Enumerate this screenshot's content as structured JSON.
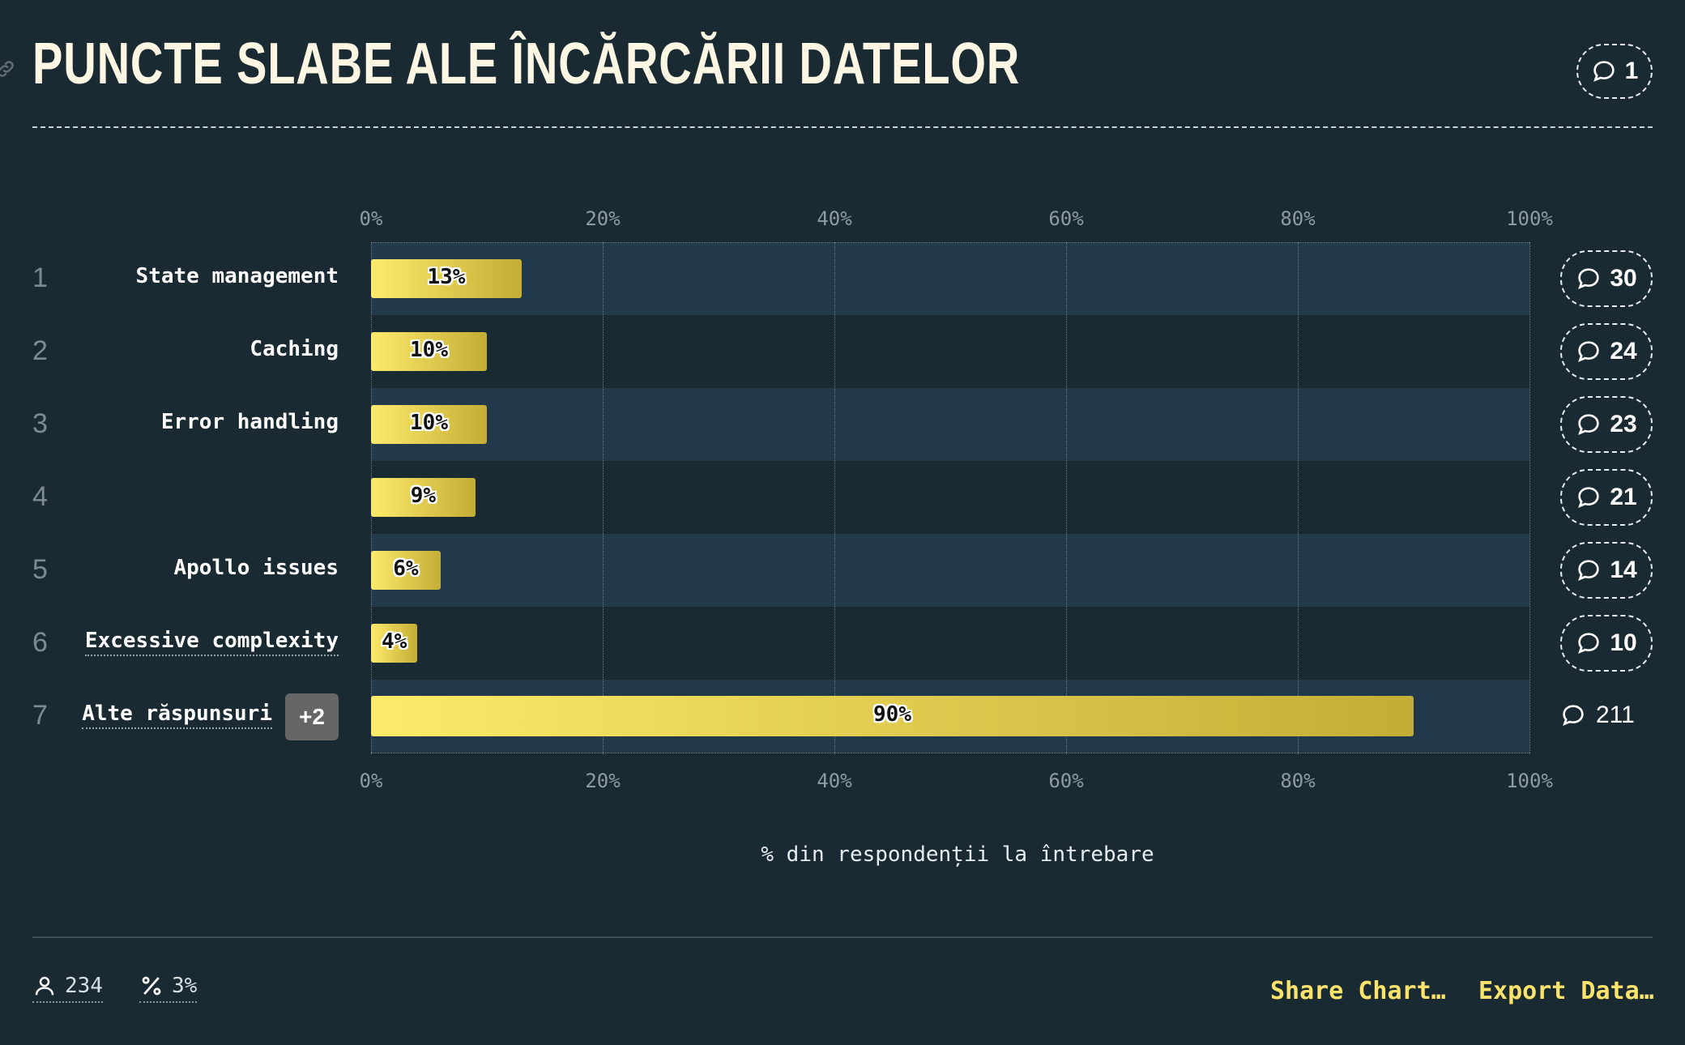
{
  "header": {
    "title": "PUNCTE SLABE ALE ÎNCĂRCĂRII DATELOR",
    "comments": "1"
  },
  "chart_data": {
    "type": "bar",
    "orientation": "horizontal",
    "axis_ticks": [
      "0%",
      "20%",
      "40%",
      "60%",
      "80%",
      "100%"
    ],
    "xlim": [
      0,
      100
    ],
    "xlabel": "% din respondenții la întrebare",
    "rows": [
      {
        "rank": "1",
        "label": "State management",
        "value": 13,
        "value_label": "13%",
        "comments": "30"
      },
      {
        "rank": "2",
        "label": "Caching",
        "value": 10,
        "value_label": "10%",
        "comments": "24"
      },
      {
        "rank": "3",
        "label": "Error handling",
        "value": 10,
        "value_label": "10%",
        "comments": "23"
      },
      {
        "rank": "4",
        "label": "",
        "value": 9,
        "value_label": "9%",
        "comments": "21"
      },
      {
        "rank": "5",
        "label": "Apollo issues",
        "value": 6,
        "value_label": "6%",
        "comments": "14"
      },
      {
        "rank": "6",
        "label": "Excessive complexity",
        "value": 4,
        "value_label": "4%",
        "comments": "10"
      },
      {
        "rank": "7",
        "label": "Alte răspunsuri",
        "value": 90,
        "value_label": "90%",
        "comments": "211",
        "badge": "+2"
      }
    ],
    "colors": {
      "bar_start": "#fdea6a",
      "bar_end": "#c4ad35",
      "band": "#21394a",
      "background": "#1a2a33"
    }
  },
  "footer": {
    "respondents": "234",
    "percent": "3%",
    "share_label": "Share Chart…",
    "export_label": "Export Data…"
  },
  "icons": {
    "link": "link-icon",
    "comment": "comment-icon",
    "user": "user-icon",
    "percent": "percent-icon"
  }
}
